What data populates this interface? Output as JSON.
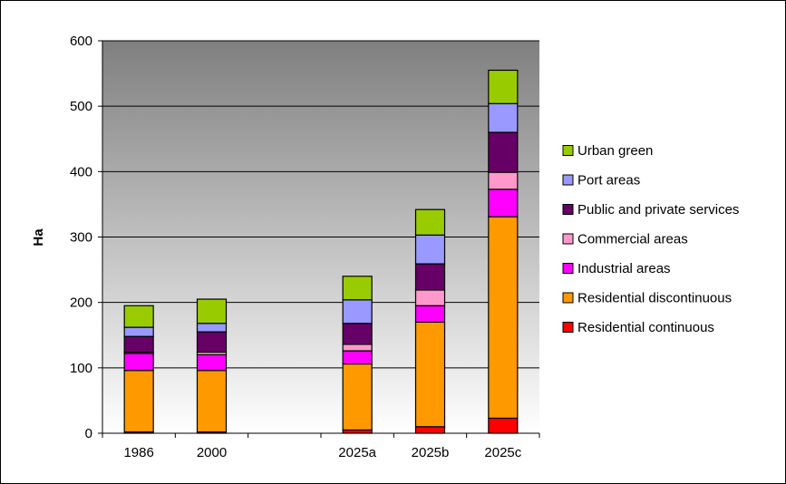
{
  "chart_data": {
    "type": "bar",
    "stacked": true,
    "ylabel": "Ha",
    "xlabel": "",
    "title": "",
    "ylim": [
      0,
      600
    ],
    "yticks": [
      0,
      100,
      200,
      300,
      400,
      500,
      600
    ],
    "grid": "horizontal",
    "legend_position": "right",
    "categories": [
      "1986",
      "2000",
      "",
      "2025a",
      "2025b",
      "2025c"
    ],
    "series": [
      {
        "name": "Residential continuous",
        "color": "#ff0000",
        "values": [
          2,
          2,
          null,
          5,
          10,
          23
        ]
      },
      {
        "name": "Residential discontinuous",
        "color": "#ff9900",
        "values": [
          94,
          94,
          null,
          101,
          160,
          308
        ]
      },
      {
        "name": "Industrial areas",
        "color": "#ff00ff",
        "values": [
          26,
          24,
          null,
          20,
          25,
          42
        ]
      },
      {
        "name": "Commercial areas",
        "color": "#ff99cc",
        "values": [
          2,
          4,
          null,
          10,
          24,
          26
        ]
      },
      {
        "name": "Public and private services",
        "color": "#660066",
        "values": [
          24,
          31,
          null,
          32,
          40,
          61
        ]
      },
      {
        "name": "Port areas",
        "color": "#9999ff",
        "values": [
          14,
          13,
          null,
          36,
          44,
          44
        ]
      },
      {
        "name": "Urban green",
        "color": "#99cc00",
        "values": [
          33,
          37,
          null,
          36,
          39,
          51
        ]
      }
    ],
    "legend_order": [
      "Urban green",
      "Port areas",
      "Public and private services",
      "Commercial areas",
      "Industrial areas",
      "Residential discontinuous",
      "Residential continuous"
    ]
  }
}
